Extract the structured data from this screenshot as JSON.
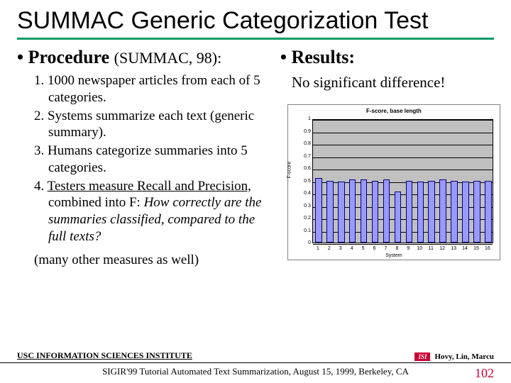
{
  "title": "SUMMAC Generic Categorization Test",
  "title_rule_color": "#009966",
  "left": {
    "heading_main": "Procedure",
    "heading_sub": "(SUMMAC, 98):",
    "items": [
      {
        "num": "1.",
        "text_a": "1000 newspaper articles from each of 5 categories."
      },
      {
        "num": "2.",
        "text_a": "Systems summarize each text (generic summary)."
      },
      {
        "num": "3.",
        "text_a": "Humans categorize summaries into 5 categories."
      },
      {
        "num": "4.",
        "u1": "Testers measure Recall and Precision,",
        "plain": " combined into F: ",
        "it": "How correctly are the summaries classified, compared to the full texts?"
      }
    ],
    "note": "(many other measures as well)"
  },
  "right": {
    "heading": "Results:",
    "result_text": "No significant difference!"
  },
  "chart": {
    "type": "bar",
    "title": "F-score, base length",
    "ylabel": "F-score",
    "xlabel": "System",
    "ylim": [
      0,
      1.0
    ],
    "ytick_step": 0.1,
    "yticks": [
      "0",
      "0.1",
      "0.2",
      "0.3",
      "0.4",
      "0.5",
      "0.6",
      "0.7",
      "0.8",
      "0.9",
      "1"
    ],
    "categories": [
      "1",
      "2",
      "3",
      "4",
      "5",
      "6",
      "7",
      "8",
      "9",
      "10",
      "11",
      "12",
      "13",
      "14",
      "15",
      "16"
    ],
    "values": [
      0.52,
      0.5,
      0.49,
      0.51,
      0.51,
      0.5,
      0.51,
      0.41,
      0.5,
      0.49,
      0.5,
      0.51,
      0.5,
      0.49,
      0.5,
      0.5
    ],
    "bar_color": "#9999ff",
    "bar_border": "#000080",
    "plot_bg": "#c0c0c0",
    "chart_border": "#808080",
    "grid_color": "#000000"
  },
  "footer": {
    "institute": "USC INFORMATION SCIENCES INSTITUTE",
    "logo_text": "ISI",
    "logo_bg": "#cc0033",
    "authors": "Hovy, Lin, Marcu",
    "conf": "SIGIR'99 Tutorial Automated Text Summarization, August 15, 1999, Berkeley, CA",
    "page": "102",
    "page_color": "#cc0033"
  }
}
